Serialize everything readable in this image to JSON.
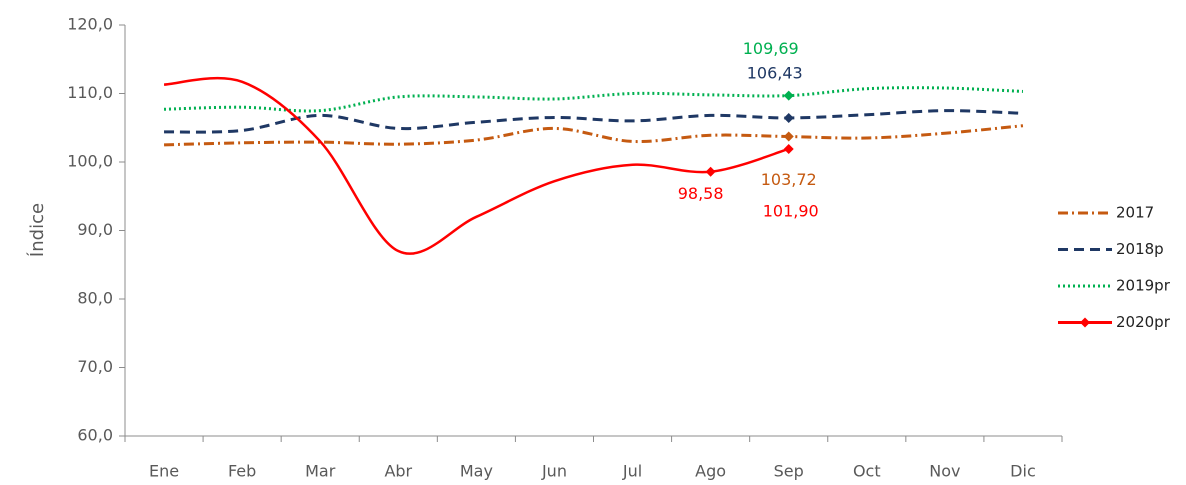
{
  "chart_data": {
    "type": "line",
    "y_label": "Índice",
    "categories": [
      "Ene",
      "Feb",
      "Mar",
      "Abr",
      "May",
      "Jun",
      "Jul",
      "Ago",
      "Sep",
      "Oct",
      "Nov",
      "Dic"
    ],
    "ylim": [
      60,
      120
    ],
    "yticks": [
      {
        "value": 60,
        "label": "60,0"
      },
      {
        "value": 70,
        "label": "70,0"
      },
      {
        "value": 80,
        "label": "80,0"
      },
      {
        "value": 90,
        "label": "90,0"
      },
      {
        "value": 100,
        "label": "100,0"
      },
      {
        "value": 110,
        "label": "110,0"
      },
      {
        "value": 120,
        "label": "120,0"
      }
    ],
    "grid": false,
    "legend": "right",
    "series": [
      {
        "name": "2017",
        "color": "#c55a11",
        "dash": "dashdot",
        "values": [
          102.5,
          102.8,
          102.9,
          102.6,
          103.2,
          104.9,
          103.0,
          103.9,
          103.72,
          103.5,
          104.2,
          105.3
        ],
        "value_labels": [
          null,
          null,
          null,
          null,
          null,
          null,
          null,
          null,
          "103,72",
          null,
          null,
          null
        ]
      },
      {
        "name": "2018p",
        "color": "#1f3864",
        "dash": "dashed",
        "values": [
          104.4,
          104.6,
          106.8,
          104.9,
          105.8,
          106.5,
          106.0,
          106.8,
          106.43,
          106.9,
          107.5,
          107.1
        ],
        "value_labels": [
          null,
          null,
          null,
          null,
          null,
          null,
          null,
          null,
          "106,43",
          null,
          null,
          null
        ]
      },
      {
        "name": "2019pr",
        "color": "#00b050",
        "dash": "dotted",
        "values": [
          107.7,
          108.0,
          107.5,
          109.5,
          109.5,
          109.2,
          110.0,
          109.8,
          109.69,
          110.7,
          110.8,
          110.3
        ],
        "value_labels": [
          null,
          null,
          null,
          null,
          null,
          null,
          null,
          null,
          "109,69",
          null,
          null,
          null
        ]
      },
      {
        "name": "2020pr",
        "color": "#ff0000",
        "dash": "solid",
        "values": [
          111.3,
          111.7,
          103.0,
          87.0,
          92.0,
          97.2,
          99.6,
          98.58,
          101.9,
          null,
          null,
          null
        ],
        "value_labels": [
          null,
          null,
          null,
          null,
          null,
          null,
          null,
          "98,58",
          "101,90",
          null,
          null,
          null
        ]
      }
    ]
  }
}
